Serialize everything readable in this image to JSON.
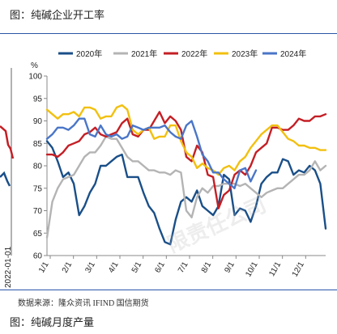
{
  "header": {
    "title": "图：纯碱企业开工率"
  },
  "footer": {
    "source": "数据来源：隆众资讯 IFIND 国信期货",
    "next_title": "图：纯碱月度产量",
    "watermark": "限责任公司"
  },
  "left_panel": {
    "date_label": "2022-01-01"
  },
  "chart_data": {
    "type": "line",
    "title": "",
    "xlabel": "",
    "ylabel": "%",
    "ylim": [
      60,
      100
    ],
    "yticks": [
      60,
      65,
      70,
      75,
      80,
      85,
      90,
      95,
      100
    ],
    "categories": [
      "1/1",
      "2/1",
      "3/1",
      "4/1",
      "5/1",
      "6/1",
      "7/1",
      "8/1",
      "9/1",
      "10/1",
      "11/1",
      "12/1"
    ],
    "x_domain": [
      1,
      53
    ],
    "grid": false,
    "legend_position": "top",
    "series": [
      {
        "name": "2020年",
        "color": "#1a4f88",
        "x": [
          1,
          2,
          3,
          4,
          5,
          6,
          7,
          8,
          9,
          10,
          11,
          12,
          13,
          14,
          15,
          16,
          17,
          18,
          19,
          20,
          21,
          22,
          23,
          24,
          25,
          26,
          27,
          28,
          29,
          30,
          31,
          32,
          33,
          34,
          35,
          36,
          37,
          38,
          39,
          40,
          41,
          42,
          43,
          44,
          45,
          46,
          47,
          48,
          49,
          50,
          51,
          52,
          53
        ],
        "values": [
          85.5,
          84,
          81,
          77.5,
          78.5,
          76,
          69,
          71,
          74,
          76,
          80,
          80,
          81,
          82,
          82.5,
          77.5,
          77.5,
          77.5,
          74,
          71,
          69.5,
          66,
          63,
          62.5,
          68,
          72,
          73,
          72,
          74.5,
          71,
          70,
          69,
          71,
          78,
          77,
          69,
          70.5,
          70,
          67.5,
          71,
          76,
          77.5,
          78.5,
          78.5,
          81.5,
          81,
          78,
          79,
          78.5,
          80,
          79,
          76,
          66
        ]
      },
      {
        "name": "2021年",
        "color": "#b4b4b4",
        "x": [
          1,
          2,
          3,
          4,
          5,
          6,
          7,
          8,
          9,
          10,
          11,
          12,
          13,
          14,
          15,
          16,
          17,
          18,
          19,
          20,
          21,
          22,
          23,
          24,
          25,
          26,
          27,
          28,
          29,
          30,
          31,
          32,
          33,
          34,
          35,
          36,
          37,
          38,
          39,
          40,
          41,
          42,
          43,
          44,
          45,
          46,
          47,
          48,
          49,
          50,
          51,
          52,
          53
        ],
        "values": [
          64,
          72,
          75,
          77,
          77.5,
          78,
          80,
          82,
          83,
          83,
          84.5,
          86.5,
          86,
          86,
          84,
          82,
          81,
          81,
          80,
          79,
          79,
          78.5,
          78.5,
          78,
          79,
          78.5,
          70,
          68.5,
          73,
          75,
          74,
          75.5,
          75.5,
          76,
          76,
          76,
          75.5,
          76,
          75,
          74,
          73,
          74,
          74.5,
          75,
          75,
          76,
          77,
          78,
          78,
          79,
          81,
          79,
          80
        ]
      },
      {
        "name": "2022年",
        "color": "#c41f25",
        "x": [
          1,
          2,
          3,
          4,
          5,
          6,
          7,
          8,
          9,
          10,
          11,
          12,
          13,
          14,
          15,
          16,
          17,
          18,
          19,
          20,
          21,
          22,
          23,
          24,
          25,
          26,
          27,
          28,
          29,
          30,
          31,
          32,
          33,
          34,
          35,
          36,
          37,
          38,
          39,
          40,
          41,
          42,
          43,
          44,
          45,
          46,
          47,
          48,
          49,
          50,
          51,
          52,
          53
        ],
        "values": [
          82.5,
          82.5,
          82,
          83,
          84.5,
          85,
          85.5,
          87,
          87.5,
          88.5,
          87,
          86.5,
          87,
          87.5,
          89.5,
          90.5,
          87,
          86.5,
          88,
          88,
          90,
          92,
          89.5,
          91,
          90,
          88,
          82,
          81,
          84.5,
          83,
          78,
          77.5,
          70.5,
          73.5,
          74.5,
          78,
          79,
          78,
          80,
          83,
          84,
          85,
          88.5,
          88.5,
          88,
          88,
          89,
          90.5,
          90,
          90,
          91,
          91,
          91.5
        ]
      },
      {
        "name": "2023年",
        "color": "#f2c00f",
        "x": [
          1,
          2,
          3,
          4,
          5,
          6,
          7,
          8,
          9,
          10,
          11,
          12,
          13,
          14,
          15,
          16,
          17,
          18,
          19,
          20,
          21,
          22,
          23,
          24,
          25,
          26,
          27,
          28,
          29,
          30,
          31,
          32,
          33,
          34,
          35,
          36,
          37,
          38,
          39,
          40,
          41,
          42,
          43,
          44,
          45,
          46,
          47,
          48,
          49,
          50,
          51,
          52,
          53
        ],
        "values": [
          92.5,
          91.5,
          90.5,
          91.5,
          91.5,
          92,
          91,
          93,
          93,
          92.5,
          90.5,
          91,
          91,
          93,
          93.5,
          92.5,
          88,
          87,
          88,
          88.5,
          86,
          86.5,
          86.5,
          89,
          89,
          85.5,
          83,
          82,
          79.5,
          80.5,
          79.5,
          79,
          78,
          79.5,
          80,
          79,
          81,
          82,
          84,
          85.5,
          87,
          88,
          89,
          89,
          87.5,
          86,
          85.5,
          84.5,
          84.5,
          84,
          84,
          83.5,
          83.5
        ]
      },
      {
        "name": "2024年",
        "color": "#4a76c8",
        "x": [
          1,
          2,
          3,
          4,
          5,
          6,
          7,
          8,
          9,
          10,
          11,
          12,
          13,
          14,
          15,
          16,
          17,
          18,
          19,
          20,
          21,
          22,
          23,
          24,
          25,
          26,
          27,
          28,
          29,
          30,
          31,
          32,
          33,
          34,
          35,
          36,
          37,
          38,
          39,
          40
        ],
        "values": [
          86,
          87,
          88.5,
          88.5,
          88,
          89,
          90.5,
          90.5,
          87,
          86.5,
          89,
          87,
          86.5,
          87,
          86,
          86.5,
          89,
          88.5,
          88,
          88.5,
          88.5,
          88.5,
          89,
          87.5,
          86.5,
          86,
          89,
          90,
          86.5,
          82.5,
          81,
          78.5,
          78.5,
          77,
          76,
          75,
          79,
          79.5,
          76.5,
          79
        ]
      }
    ]
  }
}
